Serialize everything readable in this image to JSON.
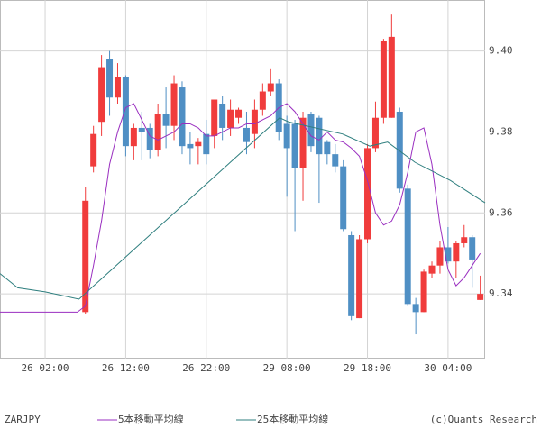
{
  "chart_data": {
    "type": "candlestick",
    "x": [
      10,
      11,
      12,
      13,
      14,
      15,
      16,
      17,
      18,
      19,
      20,
      21,
      22,
      23,
      24,
      25,
      26,
      27,
      28,
      29,
      30,
      31,
      32,
      33,
      34,
      35,
      36,
      37,
      38,
      39,
      40,
      41,
      42,
      43,
      44,
      45,
      46,
      47,
      48,
      49,
      50,
      51,
      52,
      53,
      54,
      55,
      56,
      57,
      58,
      59
    ],
    "open": [
      9.3355,
      9.3715,
      9.3825,
      9.398,
      9.3885,
      9.3935,
      9.3765,
      9.381,
      9.381,
      9.3755,
      9.3845,
      9.3815,
      9.391,
      9.377,
      9.3765,
      9.3795,
      9.379,
      9.387,
      9.381,
      9.3835,
      9.381,
      9.3795,
      9.3855,
      9.39,
      9.392,
      9.382,
      9.382,
      9.371,
      9.3845,
      9.3835,
      9.3775,
      9.3745,
      9.3715,
      9.3545,
      9.334,
      9.3535,
      9.376,
      9.3835,
      9.3835,
      9.385,
      9.366,
      9.3375,
      9.3355,
      9.345,
      9.347,
      9.3515,
      9.348,
      9.3525,
      9.354,
      9.3385
    ],
    "high": [
      9.3665,
      9.3815,
      9.399,
      9.4,
      9.397,
      9.394,
      9.382,
      9.385,
      9.382,
      9.387,
      9.391,
      9.394,
      9.3925,
      9.38,
      9.3785,
      9.383,
      9.388,
      9.389,
      9.388,
      9.386,
      9.385,
      9.388,
      9.392,
      9.3955,
      9.393,
      9.384,
      9.383,
      9.385,
      9.385,
      9.384,
      9.378,
      9.377,
      9.373,
      9.3555,
      9.3545,
      9.377,
      9.3875,
      9.403,
      9.409,
      9.386,
      9.367,
      9.339,
      9.346,
      9.348,
      9.353,
      9.3565,
      9.353,
      9.357,
      9.3545,
      9.3445
    ],
    "low": [
      9.335,
      9.37,
      9.379,
      9.384,
      9.387,
      9.374,
      9.373,
      9.373,
      9.3735,
      9.374,
      9.376,
      9.378,
      9.3745,
      9.372,
      9.372,
      9.372,
      9.376,
      9.378,
      9.379,
      9.382,
      9.3745,
      9.376,
      9.384,
      9.389,
      9.378,
      9.364,
      9.3555,
      9.363,
      9.375,
      9.3625,
      9.372,
      9.37,
      9.3555,
      9.3335,
      9.334,
      9.3525,
      9.375,
      9.382,
      9.3835,
      9.365,
      9.337,
      9.33,
      9.3355,
      9.344,
      9.345,
      9.3475,
      9.344,
      9.3515,
      9.3415,
      9.3385
    ],
    "close": [
      9.363,
      9.3795,
      9.396,
      9.3885,
      9.3935,
      9.3765,
      9.381,
      9.38,
      9.3755,
      9.3845,
      9.3815,
      9.392,
      9.3765,
      9.376,
      9.3775,
      9.3745,
      9.388,
      9.381,
      9.3855,
      9.3855,
      9.3775,
      9.3855,
      9.39,
      9.392,
      9.38,
      9.376,
      9.371,
      9.3835,
      9.3765,
      9.3745,
      9.3745,
      9.3715,
      9.356,
      9.3345,
      9.3535,
      9.376,
      9.3835,
      9.4025,
      9.4035,
      9.366,
      9.3375,
      9.3355,
      9.3455,
      9.347,
      9.3515,
      9.348,
      9.3525,
      9.354,
      9.3485,
      9.34
    ],
    "up_color": "#f03c3c",
    "down_color": "#4f8fc4",
    "series": [
      {
        "name": "5本移動平均線",
        "color": "#9a2fc0",
        "x": [
          -0.6,
          9,
          10,
          11,
          12,
          13,
          14,
          15,
          16,
          17,
          18,
          19,
          20,
          21,
          22,
          23,
          24,
          25,
          26,
          27,
          28,
          29,
          30,
          31,
          32,
          33,
          34,
          35,
          36,
          37,
          38,
          39,
          40,
          41,
          42,
          43,
          44,
          45,
          46,
          47,
          48,
          49,
          50,
          51,
          52,
          53,
          54,
          55,
          56,
          57,
          58,
          59
        ],
        "values": [
          9.3355,
          9.3355,
          9.337,
          9.347,
          9.358,
          9.372,
          9.38,
          9.386,
          9.387,
          9.383,
          9.379,
          9.378,
          9.379,
          9.38,
          9.382,
          9.382,
          9.381,
          9.379,
          9.379,
          9.38,
          9.381,
          9.381,
          9.382,
          9.382,
          9.383,
          9.384,
          9.386,
          9.387,
          9.385,
          9.382,
          9.379,
          9.378,
          9.38,
          9.378,
          9.3775,
          9.376,
          9.374,
          9.368,
          9.36,
          9.357,
          9.358,
          9.362,
          9.37,
          9.38,
          9.381,
          9.372,
          9.357,
          9.346,
          9.342,
          9.344,
          9.347,
          9.35
        ]
      },
      {
        "name": "25本移動平均線",
        "color": "#2f7f7f",
        "x": [
          -0.6,
          1.6,
          5,
          9.2,
          34.1,
          35.2,
          41.9,
          45.3,
          47.5,
          50.9,
          55.3,
          59.6
        ],
        "values": [
          9.345,
          9.3415,
          9.3405,
          9.3387,
          9.3835,
          9.3825,
          9.3795,
          9.3765,
          9.3775,
          9.3725,
          9.368,
          9.3625
        ]
      }
    ],
    "xlim": [
      -0.6,
      59.6
    ],
    "xticks": [
      {
        "value": 5,
        "label": "26 02:00"
      },
      {
        "value": 15,
        "label": "26 12:00"
      },
      {
        "value": 25,
        "label": "26 22:00"
      },
      {
        "value": 35,
        "label": "29 08:00"
      },
      {
        "value": 45,
        "label": "29 18:00"
      },
      {
        "value": 55,
        "label": "30 04:00"
      }
    ],
    "ylim": [
      9.324,
      9.4126
    ],
    "yticks": [
      {
        "value": 9.34,
        "label": "9.34"
      },
      {
        "value": 9.36,
        "label": "9.36"
      },
      {
        "value": 9.38,
        "label": "9.38"
      },
      {
        "value": 9.4,
        "label": "9.40"
      }
    ],
    "grid": true,
    "symbol": "ZARJPY",
    "credit": "(c)Quants Research"
  }
}
